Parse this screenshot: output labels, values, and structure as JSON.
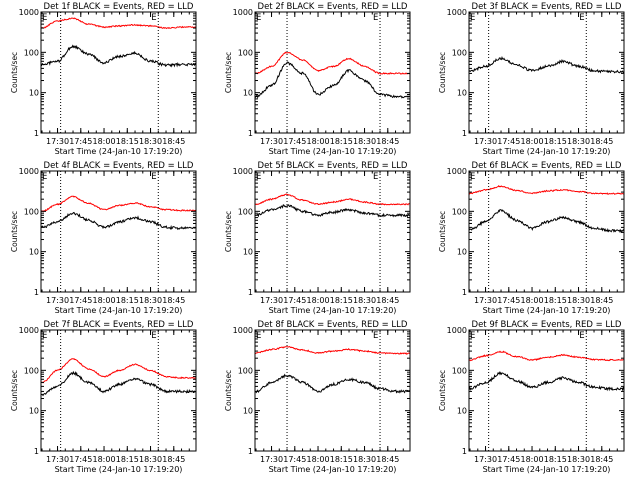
{
  "figure": {
    "panel_title_suffix": "BLACK = Events, RED = LLD",
    "xlabel": "Start Time (24-Jan-10 17:19:20)",
    "ylabel": "Counts/sec",
    "corner_marker_label": "E",
    "colors": {
      "events": "#000000",
      "lld": "#ff0000",
      "axes": "#000000",
      "background": "#ffffff"
    }
  },
  "chart_data": [
    {
      "type": "line",
      "title": "Det 1f BLACK = Events, RED = LLD",
      "xlabel": "Start Time (24-Jan-10 17:19:20)",
      "ylabel": "Counts/sec",
      "y_scale": "log",
      "ylim": [
        1,
        1000
      ],
      "x_tick_labels": [
        "17:30",
        "17:45",
        "18:00",
        "18:15",
        "18:30",
        "18:45"
      ],
      "y_tick_labels": [
        "1",
        "10",
        "100",
        "1000"
      ],
      "markers": [
        "17:32",
        "18:35"
      ],
      "series": [
        {
          "name": "Events",
          "color": "#000000",
          "x": [
            "17:20",
            "17:30",
            "17:40",
            "17:50",
            "18:00",
            "18:10",
            "18:20",
            "18:30",
            "18:40",
            "18:50"
          ],
          "values": [
            50,
            60,
            140,
            90,
            55,
            80,
            95,
            60,
            48,
            50
          ]
        },
        {
          "name": "LLD",
          "color": "#ff0000",
          "x": [
            "17:20",
            "17:30",
            "17:40",
            "17:50",
            "18:00",
            "18:10",
            "18:20",
            "18:30",
            "18:40",
            "18:50"
          ],
          "values": [
            400,
            600,
            700,
            500,
            420,
            450,
            480,
            450,
            400,
            420
          ]
        }
      ]
    },
    {
      "type": "line",
      "title": "Det 2f BLACK = Events, RED = LLD",
      "xlabel": "Start Time (24-Jan-10 17:19:20)",
      "ylabel": "Counts/sec",
      "y_scale": "log",
      "ylim": [
        1,
        1000
      ],
      "x_tick_labels": [
        "17:30",
        "17:45",
        "18:00",
        "18:15",
        "18:30",
        "18:45"
      ],
      "y_tick_labels": [
        "1",
        "10",
        "100",
        "1000"
      ],
      "markers": [
        "17:40",
        "18:40"
      ],
      "series": [
        {
          "name": "Events",
          "color": "#000000",
          "x": [
            "17:20",
            "17:30",
            "17:40",
            "17:50",
            "18:00",
            "18:10",
            "18:20",
            "18:30",
            "18:40",
            "18:50"
          ],
          "values": [
            8,
            15,
            55,
            30,
            9,
            15,
            35,
            20,
            9,
            8
          ]
        },
        {
          "name": "LLD",
          "color": "#ff0000",
          "x": [
            "17:20",
            "17:30",
            "17:40",
            "17:50",
            "18:00",
            "18:10",
            "18:20",
            "18:30",
            "18:40",
            "18:50"
          ],
          "values": [
            30,
            45,
            100,
            65,
            35,
            45,
            70,
            45,
            30,
            30
          ]
        }
      ]
    },
    {
      "type": "line",
      "title": "Det 3f BLACK = Events, RED = LLD",
      "xlabel": "Start Time (24-Jan-10 17:19:20)",
      "ylabel": "Counts/sec",
      "y_scale": "log",
      "ylim": [
        1,
        1000
      ],
      "x_tick_labels": [
        "17:30",
        "17:45",
        "18:00",
        "18:15",
        "18:30",
        "18:45"
      ],
      "y_tick_labels": [
        "1",
        "10",
        "100",
        "1000"
      ],
      "markers": [
        "17:32",
        "18:35"
      ],
      "series": [
        {
          "name": "Events",
          "color": "#000000",
          "x": [
            "17:20",
            "17:30",
            "17:40",
            "17:50",
            "18:00",
            "18:10",
            "18:20",
            "18:30",
            "18:40",
            "18:50"
          ],
          "values": [
            35,
            45,
            70,
            50,
            35,
            45,
            60,
            45,
            35,
            33
          ]
        }
      ]
    },
    {
      "type": "line",
      "title": "Det 4f BLACK = Events, RED = LLD",
      "xlabel": "Start Time (24-Jan-10 17:19:20)",
      "ylabel": "Counts/sec",
      "y_scale": "log",
      "ylim": [
        1,
        1000
      ],
      "x_tick_labels": [
        "17:30",
        "17:45",
        "18:00",
        "18:15",
        "18:30",
        "18:45"
      ],
      "y_tick_labels": [
        "1",
        "10",
        "100",
        "1000"
      ],
      "markers": [
        "17:32",
        "18:35"
      ],
      "series": [
        {
          "name": "Events",
          "color": "#000000",
          "x": [
            "17:20",
            "17:30",
            "17:40",
            "17:50",
            "18:00",
            "18:10",
            "18:20",
            "18:30",
            "18:40",
            "18:50"
          ],
          "values": [
            40,
            55,
            90,
            60,
            40,
            55,
            70,
            55,
            40,
            38
          ]
        },
        {
          "name": "LLD",
          "color": "#ff0000",
          "x": [
            "17:20",
            "17:30",
            "17:40",
            "17:50",
            "18:00",
            "18:10",
            "18:20",
            "18:30",
            "18:40",
            "18:50"
          ],
          "values": [
            100,
            150,
            230,
            160,
            110,
            140,
            160,
            130,
            110,
            105
          ]
        }
      ]
    },
    {
      "type": "line",
      "title": "Det 5f BLACK = Events, RED = LLD",
      "xlabel": "Start Time (24-Jan-10 17:19:20)",
      "ylabel": "Counts/sec",
      "y_scale": "log",
      "ylim": [
        1,
        1000
      ],
      "x_tick_labels": [
        "17:30",
        "17:45",
        "18:00",
        "18:15",
        "18:30",
        "18:45"
      ],
      "y_tick_labels": [
        "1",
        "10",
        "100",
        "1000"
      ],
      "markers": [
        "17:40",
        "18:40"
      ],
      "series": [
        {
          "name": "Events",
          "color": "#000000",
          "x": [
            "17:20",
            "17:30",
            "17:40",
            "17:50",
            "18:00",
            "18:10",
            "18:20",
            "18:30",
            "18:40",
            "18:50"
          ],
          "values": [
            80,
            110,
            140,
            100,
            80,
            95,
            110,
            90,
            80,
            80
          ]
        },
        {
          "name": "LLD",
          "color": "#ff0000",
          "x": [
            "17:20",
            "17:30",
            "17:40",
            "17:50",
            "18:00",
            "18:10",
            "18:20",
            "18:30",
            "18:40",
            "18:50"
          ],
          "values": [
            150,
            200,
            260,
            190,
            150,
            170,
            200,
            170,
            150,
            150
          ]
        }
      ]
    },
    {
      "type": "line",
      "title": "Det 6f BLACK = Events, RED = LLD",
      "xlabel": "Start Time (24-Jan-10 17:19:20)",
      "ylabel": "Counts/sec",
      "y_scale": "log",
      "ylim": [
        1,
        1000
      ],
      "x_tick_labels": [
        "17:30",
        "17:45",
        "18:00",
        "18:15",
        "18:30",
        "18:45"
      ],
      "y_tick_labels": [
        "1",
        "10",
        "100",
        "1000"
      ],
      "markers": [
        "17:32",
        "18:35"
      ],
      "series": [
        {
          "name": "Events",
          "color": "#000000",
          "x": [
            "17:20",
            "17:30",
            "17:40",
            "17:50",
            "18:00",
            "18:10",
            "18:20",
            "18:30",
            "18:40",
            "18:50"
          ],
          "values": [
            35,
            55,
            105,
            60,
            38,
            55,
            70,
            55,
            38,
            33
          ]
        },
        {
          "name": "LLD",
          "color": "#ff0000",
          "x": [
            "17:20",
            "17:30",
            "17:40",
            "17:50",
            "18:00",
            "18:10",
            "18:20",
            "18:30",
            "18:40",
            "18:50"
          ],
          "values": [
            280,
            340,
            420,
            330,
            280,
            320,
            340,
            310,
            280,
            275
          ]
        }
      ]
    },
    {
      "type": "line",
      "title": "Det 7f BLACK = Events, RED = LLD",
      "xlabel": "Start Time (24-Jan-10 17:19:20)",
      "ylabel": "Counts/sec",
      "y_scale": "log",
      "ylim": [
        1,
        1000
      ],
      "x_tick_labels": [
        "17:30",
        "17:45",
        "18:00",
        "18:15",
        "18:30",
        "18:45"
      ],
      "y_tick_labels": [
        "1",
        "10",
        "100",
        "1000"
      ],
      "markers": [
        "17:32",
        "18:35"
      ],
      "series": [
        {
          "name": "Events",
          "color": "#000000",
          "x": [
            "17:20",
            "17:30",
            "17:40",
            "17:50",
            "18:00",
            "18:10",
            "18:20",
            "18:30",
            "18:40",
            "18:50"
          ],
          "values": [
            25,
            40,
            85,
            50,
            30,
            45,
            60,
            45,
            30,
            30
          ]
        },
        {
          "name": "LLD",
          "color": "#ff0000",
          "x": [
            "17:20",
            "17:30",
            "17:40",
            "17:50",
            "18:00",
            "18:10",
            "18:20",
            "18:30",
            "18:40",
            "18:50"
          ],
          "values": [
            50,
            100,
            190,
            110,
            70,
            100,
            140,
            100,
            70,
            65
          ]
        }
      ]
    },
    {
      "type": "line",
      "title": "Det 8f BLACK = Events, RED = LLD",
      "xlabel": "Start Time (24-Jan-10 17:19:20)",
      "ylabel": "Counts/sec",
      "y_scale": "log",
      "ylim": [
        1,
        1000
      ],
      "x_tick_labels": [
        "17:30",
        "17:45",
        "18:00",
        "18:15",
        "18:30",
        "18:45"
      ],
      "y_tick_labels": [
        "1",
        "10",
        "100",
        "1000"
      ],
      "markers": [
        "17:40",
        "18:40"
      ],
      "series": [
        {
          "name": "Events",
          "color": "#000000",
          "x": [
            "17:20",
            "17:30",
            "17:40",
            "17:50",
            "18:00",
            "18:10",
            "18:20",
            "18:30",
            "18:40",
            "18:50"
          ],
          "values": [
            30,
            50,
            75,
            50,
            30,
            45,
            60,
            50,
            35,
            30
          ]
        },
        {
          "name": "LLD",
          "color": "#ff0000",
          "x": [
            "17:20",
            "17:30",
            "17:40",
            "17:50",
            "18:00",
            "18:10",
            "18:20",
            "18:30",
            "18:40",
            "18:50"
          ],
          "values": [
            270,
            330,
            380,
            320,
            270,
            300,
            330,
            300,
            270,
            260
          ]
        }
      ]
    },
    {
      "type": "line",
      "title": "Det 9f BLACK = Events, RED = LLD",
      "xlabel": "Start Time (24-Jan-10 17:19:20)",
      "ylabel": "Counts/sec",
      "y_scale": "log",
      "ylim": [
        1,
        1000
      ],
      "x_tick_labels": [
        "17:30",
        "17:45",
        "18:00",
        "18:15",
        "18:30",
        "18:45"
      ],
      "y_tick_labels": [
        "1",
        "10",
        "100",
        "1000"
      ],
      "markers": [
        "17:32",
        "18:35"
      ],
      "series": [
        {
          "name": "Events",
          "color": "#000000",
          "x": [
            "17:20",
            "17:30",
            "17:40",
            "17:50",
            "18:00",
            "18:10",
            "18:20",
            "18:30",
            "18:40",
            "18:50"
          ],
          "values": [
            35,
            50,
            85,
            55,
            38,
            50,
            65,
            50,
            38,
            35
          ]
        },
        {
          "name": "LLD",
          "color": "#ff0000",
          "x": [
            "17:20",
            "17:30",
            "17:40",
            "17:50",
            "18:00",
            "18:10",
            "18:20",
            "18:30",
            "18:40",
            "18:50"
          ],
          "values": [
            180,
            230,
            290,
            220,
            180,
            210,
            240,
            210,
            185,
            180
          ]
        }
      ]
    }
  ]
}
